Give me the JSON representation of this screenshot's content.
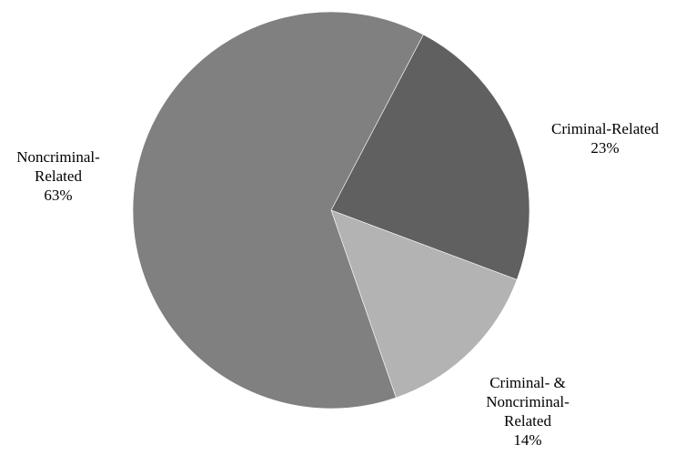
{
  "chart_data": {
    "type": "pie",
    "title": "",
    "unit": "%",
    "slices": [
      {
        "label_lines": [
          "Criminal-Related"
        ],
        "value": 23,
        "value_text": "23%",
        "color": "#606060"
      },
      {
        "label_lines": [
          "Criminal- &",
          "Noncriminal-",
          "Related"
        ],
        "value": 14,
        "value_text": "14%",
        "color": "#b3b3b3"
      },
      {
        "label_lines": [
          "Noncriminal-",
          "Related"
        ],
        "value": 63,
        "value_text": "63%",
        "color": "#808080"
      }
    ],
    "start_angle_clockwise_from_top_deg": 27.7,
    "direction": "clockwise",
    "legend": "none"
  }
}
